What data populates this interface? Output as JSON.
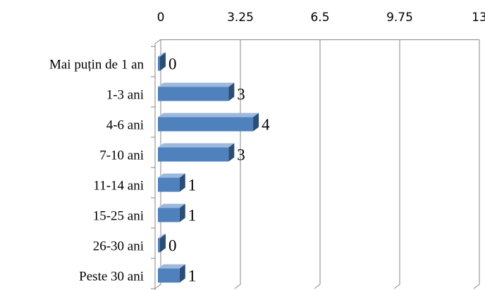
{
  "chart_data": {
    "type": "bar",
    "orientation": "horizontal",
    "style": "3d",
    "categories": [
      "Mai puțin de 1 an",
      "1-3 ani",
      "4-6 ani",
      "7-10 ani",
      "11-14 ani",
      "15-25 ani",
      "26-30 ani",
      "Peste 30 ani"
    ],
    "values": [
      0,
      3,
      4,
      3,
      1,
      1,
      0,
      1
    ],
    "value_labels": [
      "0",
      "3",
      "4",
      "3",
      "1",
      "1",
      "0",
      "1"
    ],
    "xlim": [
      0,
      13
    ],
    "x_ticks": [
      "0",
      "3.25",
      "6.5",
      "9.75",
      "13"
    ],
    "x_axis_position": "top",
    "grid": true,
    "legend": "none",
    "colors": {
      "bar_front": "#4f81bd",
      "bar_side": "#2c4d75",
      "bar_top": "#9cb8dd",
      "grid": "#868686",
      "axis": "#868686"
    }
  }
}
